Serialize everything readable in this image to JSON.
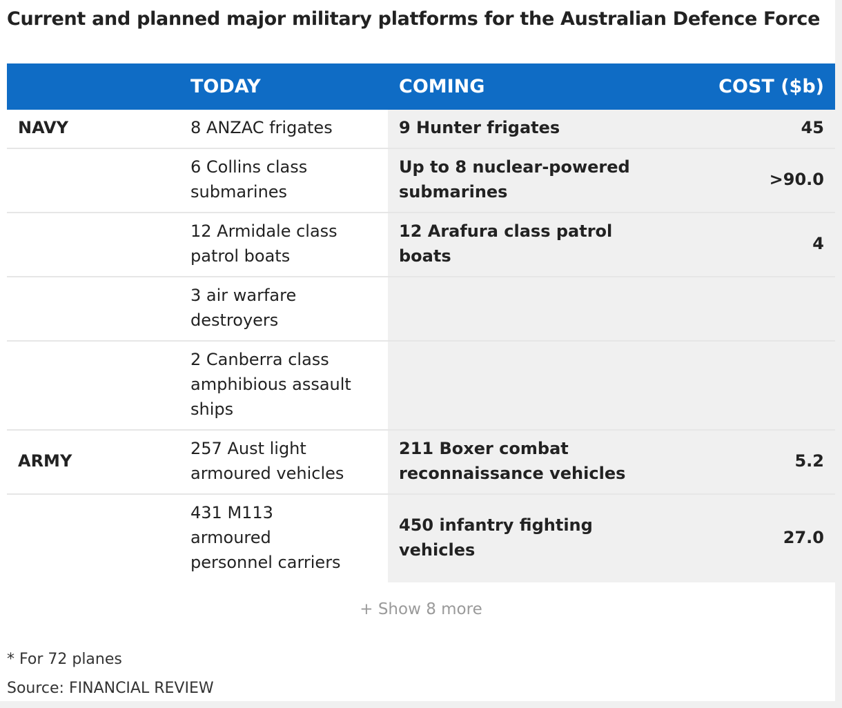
{
  "title": "Current and planned major military platforms for the Australian Defence Force",
  "chart_data": {
    "type": "table",
    "columns": [
      "",
      "TODAY",
      "COMING",
      "COST ($b)"
    ],
    "rows": [
      {
        "branch": "NAVY",
        "today": "8 ANZAC frigates",
        "coming": "9 Hunter frigates",
        "cost": "45"
      },
      {
        "branch": "",
        "today": "6 Collins class\nsubmarines",
        "coming": "Up to 8 nuclear-powered\nsubmarines",
        "cost": ">90.0"
      },
      {
        "branch": "",
        "today": "12 Armidale class\npatrol boats",
        "coming": "12 Arafura class patrol\nboats",
        "cost": "4"
      },
      {
        "branch": "",
        "today": "3 air warfare\ndestroyers",
        "coming": "",
        "cost": ""
      },
      {
        "branch": "",
        "today": "2 Canberra class\namphibious assault\nships",
        "coming": "",
        "cost": ""
      },
      {
        "branch": "ARMY",
        "today": "257 Aust light\narmoured vehicles",
        "coming": "211 Boxer combat\nreconnaissance vehicles",
        "cost": "5.2"
      },
      {
        "branch": "",
        "today": "431 M113\narmoured\npersonnel carriers",
        "coming": "450 infantry fighting\nvehicles",
        "cost": "27.0"
      }
    ]
  },
  "show_more_label": "+ Show 8 more",
  "footnote": "* For 72 planes",
  "source": "Source: FINANCIAL REVIEW",
  "colors": {
    "header_bg": "#0f6cc5",
    "branch_text": "#1265c0",
    "shaded_bg": "#f0f0f0"
  }
}
